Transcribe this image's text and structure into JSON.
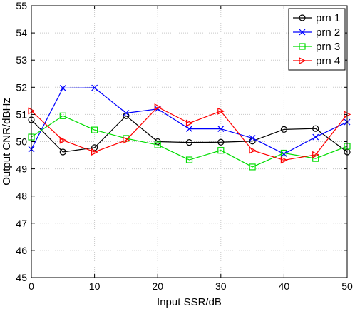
{
  "chart_data": {
    "type": "line",
    "xlabel": "Input SSR/dB",
    "ylabel": "Output CNR/dBHz",
    "xlim": [
      0,
      50
    ],
    "ylim": [
      45,
      55
    ],
    "xticks": [
      "0",
      "10",
      "20",
      "30",
      "40",
      "50"
    ],
    "yticks": [
      "45",
      "46",
      "47",
      "48",
      "49",
      "50",
      "51",
      "52",
      "53",
      "54",
      "55"
    ],
    "grid": true,
    "legend_position": "top-right",
    "x": [
      0,
      5,
      10,
      15,
      20,
      25,
      30,
      35,
      40,
      45,
      50
    ],
    "series": [
      {
        "name": "prn 1",
        "color": "#000000",
        "marker": "circle",
        "values": [
          50.8,
          49.62,
          49.78,
          50.95,
          50.0,
          49.97,
          49.98,
          50.02,
          50.45,
          50.48,
          49.62
        ]
      },
      {
        "name": "prn 2",
        "color": "#0000ff",
        "marker": "x",
        "values": [
          49.72,
          51.97,
          51.98,
          51.05,
          51.2,
          50.47,
          50.47,
          50.13,
          49.55,
          50.17,
          50.72
        ]
      },
      {
        "name": "prn 3",
        "color": "#00dd00",
        "marker": "square",
        "values": [
          50.17,
          50.95,
          50.43,
          50.12,
          49.88,
          49.33,
          49.68,
          49.07,
          49.58,
          49.38,
          49.83
        ]
      },
      {
        "name": "prn 4",
        "color": "#ff0000",
        "marker": "triangle-right",
        "values": [
          51.13,
          50.05,
          49.62,
          50.05,
          51.27,
          50.68,
          51.12,
          49.68,
          49.32,
          49.52,
          51.0
        ]
      }
    ]
  }
}
